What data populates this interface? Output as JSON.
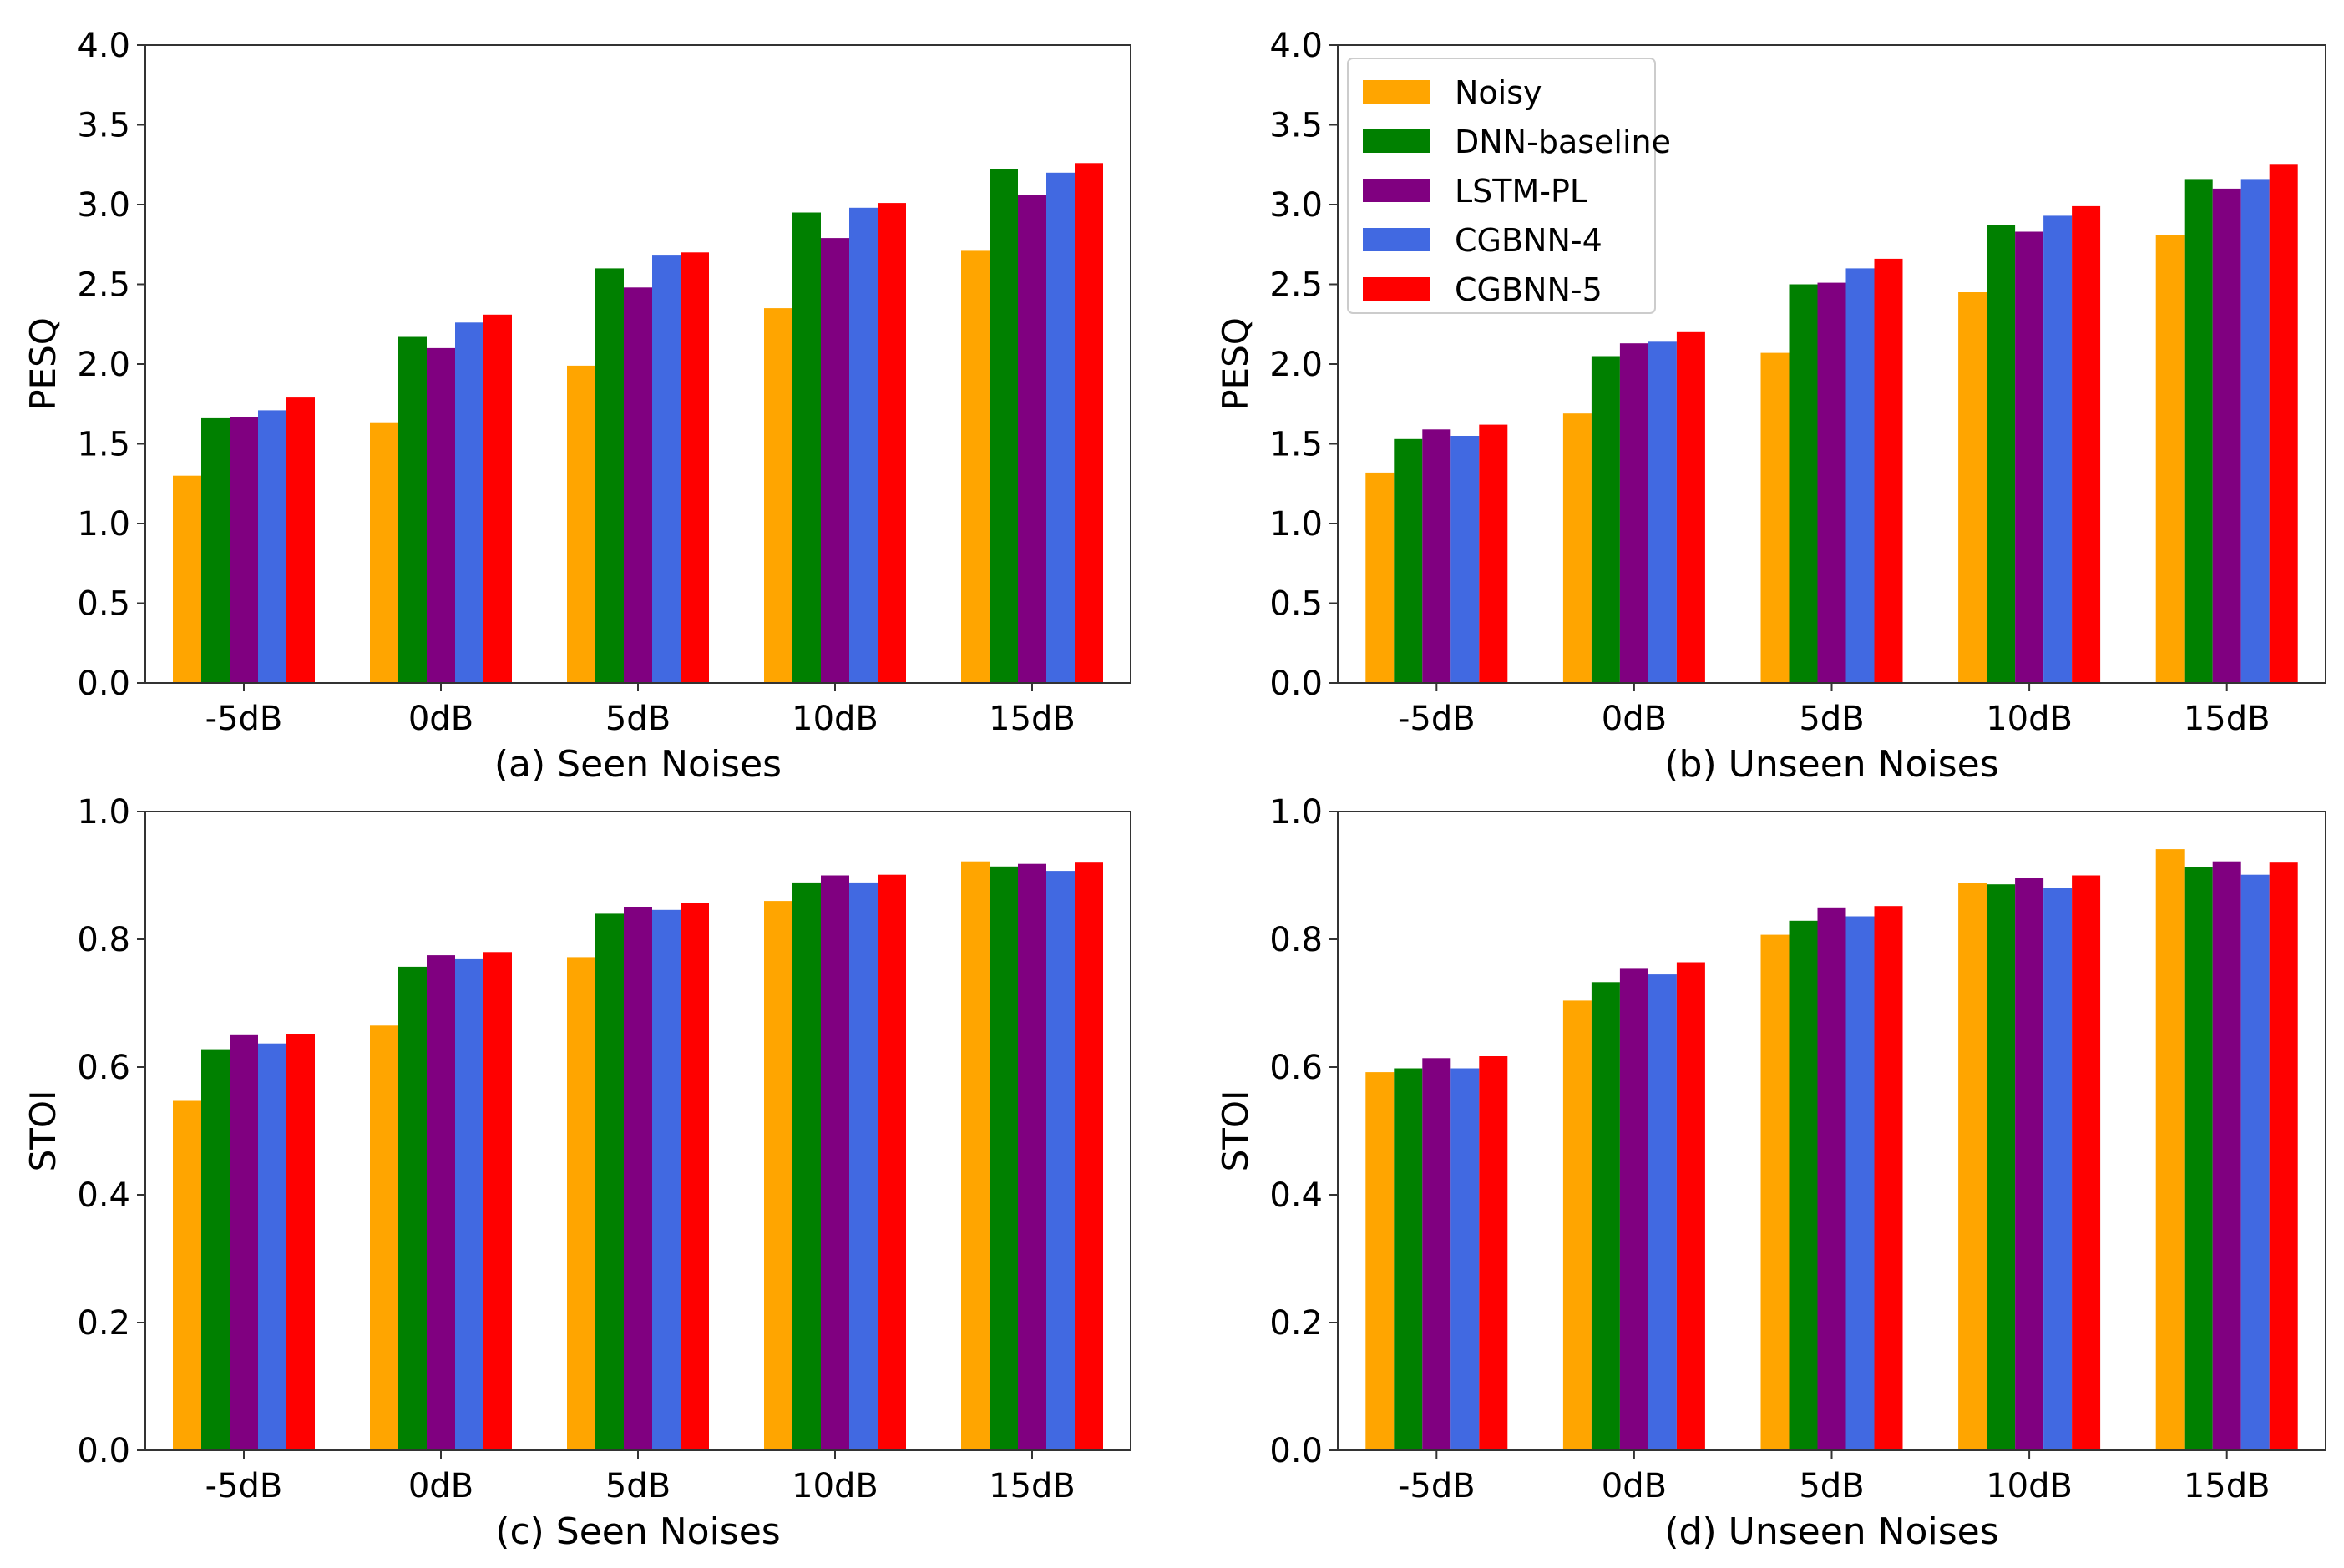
{
  "chart_data": [
    {
      "type": "bar",
      "caption": "(a) Seen Noises",
      "ylabel": "PESQ",
      "ylim": [
        0,
        4.0
      ],
      "yticks": [
        "0.0",
        "0.5",
        "1.0",
        "1.5",
        "2.0",
        "2.5",
        "3.0",
        "3.5",
        "4.0"
      ],
      "categories": [
        "-5dB",
        "0dB",
        "5dB",
        "10dB",
        "15dB"
      ],
      "legend": null,
      "series": [
        {
          "name": "Noisy",
          "color": "#FFA500",
          "values": [
            1.3,
            1.63,
            1.99,
            2.35,
            2.71
          ]
        },
        {
          "name": "DNN-baseline",
          "color": "#008000",
          "values": [
            1.66,
            2.17,
            2.6,
            2.95,
            3.22
          ]
        },
        {
          "name": "LSTM-PL",
          "color": "#800080",
          "values": [
            1.67,
            2.1,
            2.48,
            2.79,
            3.06
          ]
        },
        {
          "name": "CGBNN-4",
          "color": "#4169E1",
          "values": [
            1.71,
            2.26,
            2.68,
            2.98,
            3.2
          ]
        },
        {
          "name": "CGBNN-5",
          "color": "#FF0000",
          "values": [
            1.79,
            2.31,
            2.7,
            3.01,
            3.26
          ]
        }
      ]
    },
    {
      "type": "bar",
      "caption": "(b) Unseen Noises",
      "ylabel": "PESQ",
      "ylim": [
        0,
        4.0
      ],
      "yticks": [
        "0.0",
        "0.5",
        "1.0",
        "1.5",
        "2.0",
        "2.5",
        "3.0",
        "3.5",
        "4.0"
      ],
      "categories": [
        "-5dB",
        "0dB",
        "5dB",
        "10dB",
        "15dB"
      ],
      "legend": "upper-left",
      "series": [
        {
          "name": "Noisy",
          "color": "#FFA500",
          "values": [
            1.32,
            1.69,
            2.07,
            2.45,
            2.81
          ]
        },
        {
          "name": "DNN-baseline",
          "color": "#008000",
          "values": [
            1.53,
            2.05,
            2.5,
            2.87,
            3.16
          ]
        },
        {
          "name": "LSTM-PL",
          "color": "#800080",
          "values": [
            1.59,
            2.13,
            2.51,
            2.83,
            3.1
          ]
        },
        {
          "name": "CGBNN-4",
          "color": "#4169E1",
          "values": [
            1.55,
            2.14,
            2.6,
            2.93,
            3.16
          ]
        },
        {
          "name": "CGBNN-5",
          "color": "#FF0000",
          "values": [
            1.62,
            2.2,
            2.66,
            2.99,
            3.25
          ]
        }
      ]
    },
    {
      "type": "bar",
      "caption": "(c) Seen Noises",
      "ylabel": "STOI",
      "ylim": [
        0,
        1.0
      ],
      "yticks": [
        "0.0",
        "0.2",
        "0.4",
        "0.6",
        "0.8",
        "1.0"
      ],
      "categories": [
        "-5dB",
        "0dB",
        "5dB",
        "10dB",
        "15dB"
      ],
      "legend": null,
      "series": [
        {
          "name": "Noisy",
          "color": "#FFA500",
          "values": [
            0.547,
            0.665,
            0.772,
            0.86,
            0.922
          ]
        },
        {
          "name": "DNN-baseline",
          "color": "#008000",
          "values": [
            0.628,
            0.757,
            0.84,
            0.889,
            0.914
          ]
        },
        {
          "name": "LSTM-PL",
          "color": "#800080",
          "values": [
            0.65,
            0.775,
            0.851,
            0.9,
            0.918
          ]
        },
        {
          "name": "CGBNN-4",
          "color": "#4169E1",
          "values": [
            0.637,
            0.77,
            0.846,
            0.889,
            0.907
          ]
        },
        {
          "name": "CGBNN-5",
          "color": "#FF0000",
          "values": [
            0.651,
            0.78,
            0.857,
            0.901,
            0.92
          ]
        }
      ]
    },
    {
      "type": "bar",
      "caption": "(d) Unseen Noises",
      "ylabel": "STOI",
      "ylim": [
        0,
        1.0
      ],
      "yticks": [
        "0.0",
        "0.2",
        "0.4",
        "0.6",
        "0.8",
        "1.0"
      ],
      "categories": [
        "-5dB",
        "0dB",
        "5dB",
        "10dB",
        "15dB"
      ],
      "legend": null,
      "series": [
        {
          "name": "Noisy",
          "color": "#FFA500",
          "values": [
            0.592,
            0.704,
            0.807,
            0.888,
            0.941
          ]
        },
        {
          "name": "DNN-baseline",
          "color": "#008000",
          "values": [
            0.598,
            0.733,
            0.829,
            0.886,
            0.913
          ]
        },
        {
          "name": "LSTM-PL",
          "color": "#800080",
          "values": [
            0.614,
            0.755,
            0.85,
            0.896,
            0.922
          ]
        },
        {
          "name": "CGBNN-4",
          "color": "#4169E1",
          "values": [
            0.598,
            0.745,
            0.836,
            0.881,
            0.901
          ]
        },
        {
          "name": "CGBNN-5",
          "color": "#FF0000",
          "values": [
            0.617,
            0.764,
            0.852,
            0.9,
            0.92
          ]
        }
      ]
    }
  ]
}
